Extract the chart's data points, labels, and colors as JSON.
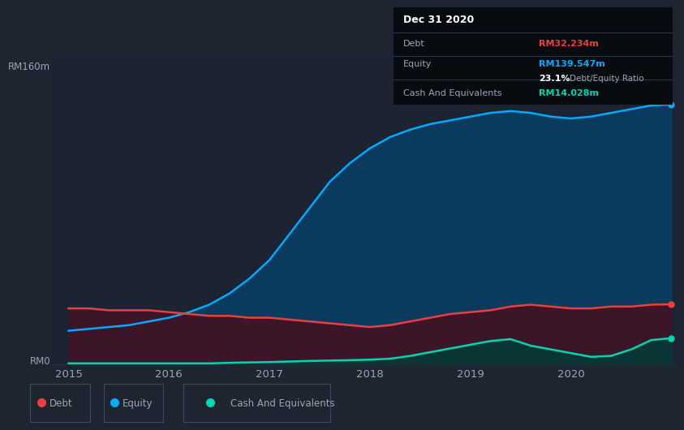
{
  "bg_color": "#1e2530",
  "plot_bg_color": "#1c2333",
  "tooltip": {
    "date": "Dec 31 2020",
    "debt_label": "Debt",
    "debt_value": "RM32.234m",
    "equity_label": "Equity",
    "equity_value": "RM139.547m",
    "ratio_value": "23.1%",
    "ratio_label": "Debt/Equity Ratio",
    "cash_label": "Cash And Equivalents",
    "cash_value": "RM14.028m"
  },
  "ylabel_top": "RM160m",
  "ylabel_bottom": "RM0",
  "x_ticks": [
    2015,
    2016,
    2017,
    2018,
    2019,
    2020
  ],
  "years": [
    2015.0,
    2015.2,
    2015.4,
    2015.6,
    2015.8,
    2016.0,
    2016.2,
    2016.4,
    2016.6,
    2016.8,
    2017.0,
    2017.2,
    2017.4,
    2017.6,
    2017.8,
    2018.0,
    2018.2,
    2018.4,
    2018.6,
    2018.8,
    2019.0,
    2019.2,
    2019.4,
    2019.6,
    2019.8,
    2020.0,
    2020.2,
    2020.4,
    2020.6,
    2020.8,
    2021.0
  ],
  "equity": [
    18,
    19,
    20,
    21,
    23,
    25,
    28,
    32,
    38,
    46,
    56,
    70,
    84,
    98,
    108,
    116,
    122,
    126,
    129,
    131,
    133,
    135,
    136,
    135,
    133,
    132,
    133,
    135,
    137,
    139,
    139.547
  ],
  "debt": [
    30,
    30,
    29,
    29,
    29,
    28,
    27,
    26,
    26,
    25,
    25,
    24,
    23,
    22,
    21,
    20,
    21,
    23,
    25,
    27,
    28,
    29,
    31,
    32,
    31,
    30,
    30,
    31,
    31,
    32,
    32.234
  ],
  "cash": [
    0.5,
    0.5,
    0.5,
    0.5,
    0.5,
    0.5,
    0.5,
    0.5,
    0.8,
    1.0,
    1.2,
    1.5,
    1.8,
    2.0,
    2.2,
    2.5,
    3.0,
    4.5,
    6.5,
    8.5,
    10.5,
    12.5,
    13.5,
    10.0,
    8.0,
    6.0,
    4.0,
    4.5,
    8.0,
    13.0,
    14.028
  ],
  "equity_color": "#00aaff",
  "equity_fill": "#0a3a5e",
  "debt_color": "#e84040",
  "debt_fill": "#3d1528",
  "cash_color": "#00d4b0",
  "cash_fill": "#0a3535",
  "grid_color": "#2a3545",
  "text_color": "#9aa5b4",
  "legend_items": [
    "Debt",
    "Equity",
    "Cash And Equivalents"
  ],
  "legend_colors": [
    "#e84040",
    "#00aaff",
    "#00d4b0"
  ]
}
